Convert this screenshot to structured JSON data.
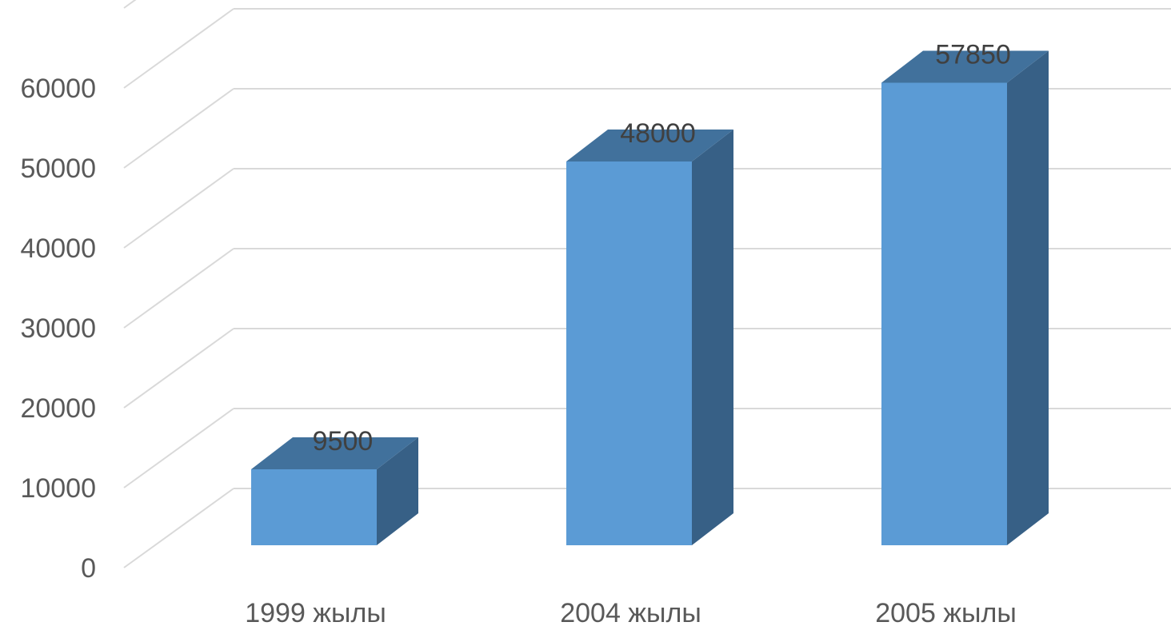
{
  "chart_data": {
    "type": "bar",
    "style": "3d-column",
    "categories": [
      "1999 жылы",
      "2004 жылы",
      "2005 жылы"
    ],
    "values": [
      9500,
      48000,
      57850
    ],
    "data_labels": [
      "9500",
      "48000",
      "57850"
    ],
    "y_ticks": [
      0,
      10000,
      20000,
      30000,
      40000,
      50000,
      60000
    ],
    "y_tick_labels": [
      "0",
      "10000",
      "20000",
      "30000",
      "40000",
      "50000",
      "60000"
    ],
    "ylim": [
      0,
      60000
    ],
    "title": "",
    "xlabel": "",
    "ylabel": "",
    "grid": true,
    "legend": "none",
    "colors": {
      "bar_front": "#5b9bd5",
      "bar_top": "#41719c",
      "bar_side": "#376086",
      "grid": "#d9d9d9",
      "tick_text": "#595959",
      "label_text": "#404040"
    }
  }
}
